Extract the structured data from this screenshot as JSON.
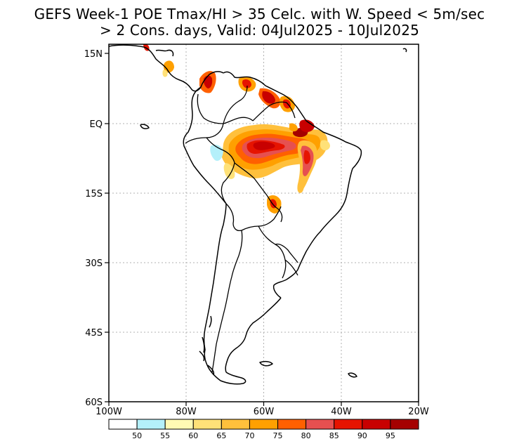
{
  "title": {
    "line1": "GEFS Week-1 POE Tmax/HI > 35 Celc. with W. Speed < 5m/sec",
    "line2": "> 2 Cons. days, Valid: 04Jul2025 - 10Jul2025"
  },
  "map": {
    "region": "South America",
    "lon_range": [
      -100,
      -20
    ],
    "lat_range": [
      -60,
      17
    ],
    "lon_ticks": [
      {
        "value": -100,
        "label": "100W"
      },
      {
        "value": -80,
        "label": "80W"
      },
      {
        "value": -60,
        "label": "60W"
      },
      {
        "value": -40,
        "label": "40W"
      },
      {
        "value": -20,
        "label": "20W"
      }
    ],
    "lat_ticks": [
      {
        "value": 15,
        "label": "15N"
      },
      {
        "value": 0,
        "label": "EQ"
      },
      {
        "value": -15,
        "label": "15S"
      },
      {
        "value": -30,
        "label": "30S"
      },
      {
        "value": -45,
        "label": "45S"
      },
      {
        "value": -60,
        "label": "60S"
      }
    ],
    "grid": "dotted"
  },
  "colorbar": {
    "labels": [
      "50",
      "55",
      "60",
      "65",
      "70",
      "75",
      "80",
      "85",
      "90",
      "95"
    ],
    "colors": [
      "#ffffff",
      "#b4f0fa",
      "#fffab4",
      "#ffe178",
      "#ffc03c",
      "#ffa000",
      "#ff6000",
      "#e65050",
      "#e61400",
      "#c80000",
      "#a50000"
    ]
  }
}
